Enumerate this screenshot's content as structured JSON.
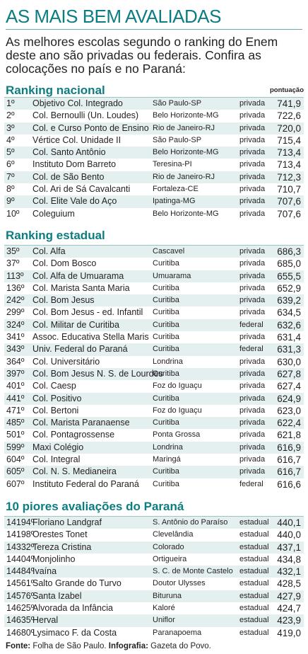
{
  "header": {
    "title": "AS MAIS BEM AVALIADAS",
    "intro": "As melhores escolas segundo o ranking do Enem deste ano são privadas ou federais. Confira as colocações no país e no Paraná:"
  },
  "pontuacao_label": "pontuação",
  "national": {
    "heading": "Ranking nacional",
    "rows": [
      {
        "rank": "1º",
        "name": "Objetivo Col. Integrado",
        "city": "São Paulo-SP",
        "type": "privada",
        "score": "741,9"
      },
      {
        "rank": "2º",
        "name": "Col. Bernoulli (Un. Loudes)",
        "city": "Belo Horizonte-MG",
        "type": "privada",
        "score": "722,6"
      },
      {
        "rank": "3º",
        "name": "Col. e Curso Ponto de Ensino",
        "city": "Rio de Janeiro-RJ",
        "type": "privada",
        "score": "720,0"
      },
      {
        "rank": "4º",
        "name": "Vértice Col. Unidade II",
        "city": "São Paulo-SP",
        "type": "privada",
        "score": "715,4"
      },
      {
        "rank": "5º",
        "name": "Col. Santo Antônio",
        "city": "Belo Horizonte-MG",
        "type": "privada",
        "score": "713,4"
      },
      {
        "rank": "6º",
        "name": "Instituto Dom Barreto",
        "city": "Teresina-PI",
        "type": "privada",
        "score": "713,4"
      },
      {
        "rank": "7º",
        "name": "Col. de São Bento",
        "city": "Rio de Janeiro-RJ",
        "type": "privada",
        "score": "712,3"
      },
      {
        "rank": "8º",
        "name": "Col. Ari de Sá Cavalcanti",
        "city": "Fortaleza-CE",
        "type": "privada",
        "score": "710,7"
      },
      {
        "rank": "9º",
        "name": "Col. Elite Vale do Aço",
        "city": "Ipatinga-MG",
        "type": "privada",
        "score": "707,6"
      },
      {
        "rank": "10º",
        "name": "Coleguium",
        "city": "Belo Horizonte-MG",
        "type": "privada",
        "score": "707,6"
      }
    ]
  },
  "state": {
    "heading": "Ranking estadual",
    "rows": [
      {
        "rank": "35º",
        "name": "Col. Alfa",
        "city": "Cascavel",
        "type": "privada",
        "score": "686,3"
      },
      {
        "rank": "37º",
        "name": "Col. Dom Bosco",
        "city": "Curitiba",
        "type": "privada",
        "score": "685,0"
      },
      {
        "rank": "113º",
        "name": "Col. Alfa de Umuarama",
        "city": "Umuarama",
        "type": "privada",
        "score": "655,5"
      },
      {
        "rank": "136º",
        "name": "Col. Marista Santa Maria",
        "city": "Curitiba",
        "type": "privada",
        "score": "652,9"
      },
      {
        "rank": "242º",
        "name": "Col. Bom Jesus",
        "city": "Curitiba",
        "type": "privada",
        "score": "639,2"
      },
      {
        "rank": "299º",
        "name": "Col. Bom Jesus - ed. Infantil",
        "city": "Curitiba",
        "type": "privada",
        "score": "634,5"
      },
      {
        "rank": "324º",
        "name": "Col. Militar de Curitiba",
        "city": "Curitiba",
        "type": "federal",
        "score": "632,6"
      },
      {
        "rank": "341º",
        "name": "Assoc. Educativa Stella Maris",
        "city": "Curitiba",
        "type": "privada",
        "score": "631,4"
      },
      {
        "rank": "343º",
        "name": "Univ. Federal do Paraná",
        "city": "Curitiba",
        "type": "federal",
        "score": "631,3"
      },
      {
        "rank": "364º",
        "name": "Col. Universitário",
        "city": "Londrina",
        "type": "privada",
        "score": "630,0"
      },
      {
        "rank": "397º",
        "name": "Col. Bom Jesus N. S. de Lourdes",
        "city": "Curitiba",
        "type": "privada",
        "score": "627,8"
      },
      {
        "rank": "401º",
        "name": "Col. Caesp",
        "city": "Foz do Iguaçu",
        "type": "privada",
        "score": "627,4"
      },
      {
        "rank": "441º",
        "name": "Col. Positivo",
        "city": "Curitiba",
        "type": "privada",
        "score": "624,9"
      },
      {
        "rank": "471º",
        "name": "Col. Bertoni",
        "city": "Foz do Iguaçu",
        "type": "privada",
        "score": "623,0"
      },
      {
        "rank": "485º",
        "name": "Col. Marista Paranaense",
        "city": "Curitiba",
        "type": "privada",
        "score": "622,4"
      },
      {
        "rank": "501º",
        "name": "Col. Pontagrossense",
        "city": "Ponta Grossa",
        "type": "privada",
        "score": "621,8"
      },
      {
        "rank": "599º",
        "name": "Maxi Colégio",
        "city": "Londrina",
        "type": "privada",
        "score": "616,9"
      },
      {
        "rank": "604º",
        "name": "Col. Integral",
        "city": "Maringá",
        "type": "privada",
        "score": "616,7"
      },
      {
        "rank": "605º",
        "name": "Col. N. S. Medianeira",
        "city": "Curitiba",
        "type": "privada",
        "score": "616,7"
      },
      {
        "rank": "607º",
        "name": "Instituto Federal do Paraná",
        "city": "Curitiba",
        "type": "federal",
        "score": "616,6"
      }
    ]
  },
  "worst": {
    "heading": "10 piores avaliações do Paraná",
    "rows": [
      {
        "rank": "14194º",
        "name": "Floriano Landgraf",
        "city": "S. Antônio do Paraíso",
        "type": "estadual",
        "score": "440,1"
      },
      {
        "rank": "14198º",
        "name": "Orestes Tonet",
        "city": "Clevelândia",
        "type": "estadual",
        "score": "440,0"
      },
      {
        "rank": "14332º",
        "name": "Tereza Cristina",
        "city": "Colorado",
        "type": "estadual",
        "score": "437,1"
      },
      {
        "rank": "14404º",
        "name": "Monjolinho",
        "city": "Ortigueira",
        "type": "estadual",
        "score": "434,8"
      },
      {
        "rank": "14484º",
        "name": "Ivaína",
        "city": "S. C. de Monte Castelo",
        "type": "estadual",
        "score": "432,1"
      },
      {
        "rank": "14561º",
        "name": "Salto Grande do Turvo",
        "city": "Doutor Ulysses",
        "type": "estadual",
        "score": "428,5"
      },
      {
        "rank": "14576º",
        "name": "Santa Izabel",
        "city": "Bituruna",
        "type": "estadual",
        "score": "427,9"
      },
      {
        "rank": "14625º",
        "name": "Alvorada da Infância",
        "city": "Kaloré",
        "type": "estadual",
        "score": "424,7"
      },
      {
        "rank": "14635º",
        "name": "Herval",
        "city": "Uniflor",
        "type": "estadual",
        "score": "423,9"
      },
      {
        "rank": "14680º",
        "name": "Lysimaco F. da Costa",
        "city": "Paranapoema",
        "type": "estadual",
        "score": "419,0"
      }
    ]
  },
  "footer": {
    "fonte_label": "Fonte:",
    "fonte_value": " Folha de São Paulo.",
    "info_label": " Infografia:",
    "info_value": " Gazeta do Povo."
  }
}
